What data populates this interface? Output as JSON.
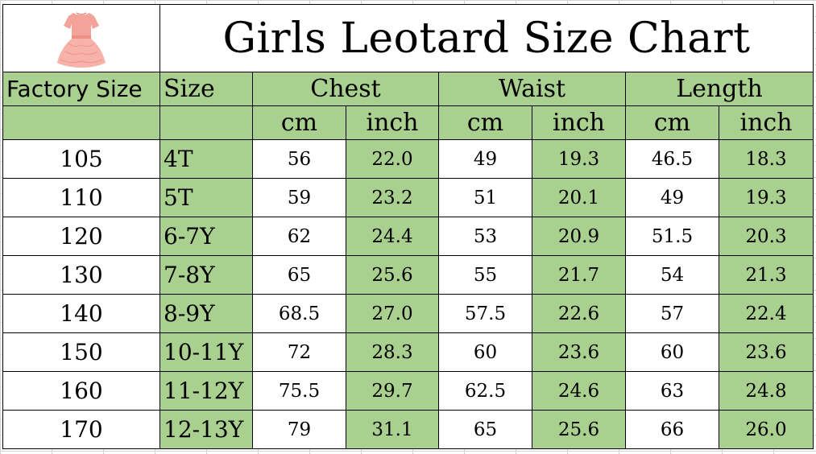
{
  "title": "Girls Leotard Size Chart",
  "image_icon": "pink-tutu-dress-icon",
  "colors": {
    "green": "#a9d08e",
    "dress": "#f4a39a"
  },
  "headers": {
    "factory_size": "Factory Size",
    "size": "Size",
    "chest": "Chest",
    "waist": "Waist",
    "length": "Length",
    "cm": "cm",
    "inch": "inch"
  },
  "rows": [
    {
      "factory": "105",
      "size": "4T",
      "chest_cm": "56",
      "chest_in": "22.0",
      "waist_cm": "49",
      "waist_in": "19.3",
      "length_cm": "46.5",
      "length_in": "18.3"
    },
    {
      "factory": "110",
      "size": "5T",
      "chest_cm": "59",
      "chest_in": "23.2",
      "waist_cm": "51",
      "waist_in": "20.1",
      "length_cm": "49",
      "length_in": "19.3"
    },
    {
      "factory": "120",
      "size": "6-7Y",
      "chest_cm": "62",
      "chest_in": "24.4",
      "waist_cm": "53",
      "waist_in": "20.9",
      "length_cm": "51.5",
      "length_in": "20.3"
    },
    {
      "factory": "130",
      "size": "7-8Y",
      "chest_cm": "65",
      "chest_in": "25.6",
      "waist_cm": "55",
      "waist_in": "21.7",
      "length_cm": "54",
      "length_in": "21.3"
    },
    {
      "factory": "140",
      "size": "8-9Y",
      "chest_cm": "68.5",
      "chest_in": "27.0",
      "waist_cm": "57.5",
      "waist_in": "22.6",
      "length_cm": "57",
      "length_in": "22.4"
    },
    {
      "factory": "150",
      "size": "10-11Y",
      "chest_cm": "72",
      "chest_in": "28.3",
      "waist_cm": "60",
      "waist_in": "23.6",
      "length_cm": "60",
      "length_in": "23.6"
    },
    {
      "factory": "160",
      "size": "11-12Y",
      "chest_cm": "75.5",
      "chest_in": "29.7",
      "waist_cm": "62.5",
      "waist_in": "24.6",
      "length_cm": "63",
      "length_in": "24.8"
    },
    {
      "factory": "170",
      "size": "12-13Y",
      "chest_cm": "79",
      "chest_in": "31.1",
      "waist_cm": "65",
      "waist_in": "25.6",
      "length_cm": "66",
      "length_in": "26.0"
    }
  ]
}
